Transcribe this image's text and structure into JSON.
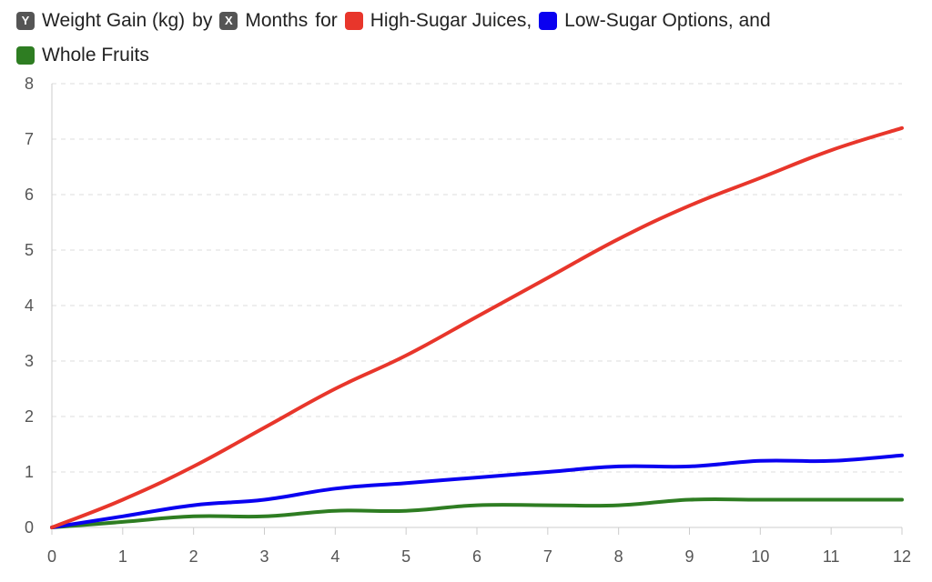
{
  "legend": {
    "y_badge": "Y",
    "y_text": "Weight Gain (kg)",
    "by_text": "by",
    "x_badge": "X",
    "x_text": "Months",
    "for_text": "for",
    "series1_label": "High-Sugar Juices,",
    "series2_label": "Low-Sugar Options, and",
    "series3_label": "Whole Fruits"
  },
  "colors": {
    "high_sugar": "#e8362b",
    "low_sugar": "#0a00f0",
    "whole_fruits": "#2e7d22",
    "grid": "#dddddd",
    "axis": "#cccccc"
  },
  "chart_data": {
    "type": "line",
    "x": [
      0,
      1,
      2,
      3,
      4,
      5,
      6,
      7,
      8,
      9,
      10,
      11,
      12
    ],
    "xlim": [
      0,
      12
    ],
    "ylim": [
      0,
      8
    ],
    "yticks": [
      0,
      1,
      2,
      3,
      4,
      5,
      6,
      7,
      8
    ],
    "xticks": [
      0,
      1,
      2,
      3,
      4,
      5,
      6,
      7,
      8,
      9,
      10,
      11,
      12
    ],
    "grid": "horizontal dashed",
    "legend_position": "top",
    "xlabel": "Months",
    "ylabel": "Weight Gain (kg)",
    "series": [
      {
        "name": "High-Sugar Juices",
        "color": "#e8362b",
        "values": [
          0,
          0.5,
          1.1,
          1.8,
          2.5,
          3.1,
          3.8,
          4.5,
          5.2,
          5.8,
          6.3,
          6.8,
          7.2
        ]
      },
      {
        "name": "Low-Sugar Options",
        "color": "#0a00f0",
        "values": [
          0,
          0.2,
          0.4,
          0.5,
          0.7,
          0.8,
          0.9,
          1.0,
          1.1,
          1.1,
          1.2,
          1.2,
          1.3
        ]
      },
      {
        "name": "Whole Fruits",
        "color": "#2e7d22",
        "values": [
          0,
          0.1,
          0.2,
          0.2,
          0.3,
          0.3,
          0.4,
          0.4,
          0.4,
          0.5,
          0.5,
          0.5,
          0.5
        ]
      }
    ]
  }
}
